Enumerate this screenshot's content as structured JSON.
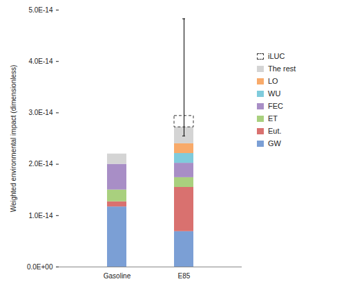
{
  "chart_data": {
    "type": "bar",
    "stacked": true,
    "categories": [
      "Gasoline",
      "E85"
    ],
    "y_label": "Weighted environmental impact (dimensionless)",
    "ylim": [
      0,
      5e-14
    ],
    "yticks": [
      {
        "value": 0,
        "label": "0.0E+00"
      },
      {
        "value": 1e-14,
        "label": "1.0E-14"
      },
      {
        "value": 2e-14,
        "label": "2.0E-14"
      },
      {
        "value": 3e-14,
        "label": "3.0E-14"
      },
      {
        "value": 4e-14,
        "label": "4.0E-14"
      },
      {
        "value": 5e-14,
        "label": "5.0E-14"
      }
    ],
    "grid": false,
    "legend": "right",
    "series": [
      {
        "name": "GW",
        "color": "#7b9fd5",
        "values": [
          1.17e-14,
          6.9e-15
        ]
      },
      {
        "name": "Eut.",
        "color": "#d9716f",
        "values": [
          1e-15,
          8.6e-15
        ]
      },
      {
        "name": "ET",
        "color": "#a9d07e",
        "values": [
          2.3e-15,
          1.9e-15
        ]
      },
      {
        "name": "FEC",
        "color": "#a88ec6",
        "values": [
          5e-15,
          2.8e-15
        ]
      },
      {
        "name": "WU",
        "color": "#7fcbdc",
        "values": [
          null,
          1.9e-15
        ]
      },
      {
        "name": "LO",
        "color": "#f8aa6a",
        "values": [
          null,
          1.9e-15
        ]
      },
      {
        "name": "The rest",
        "color": "#d4d4d4",
        "values": [
          2e-15,
          3.2e-15
        ]
      },
      {
        "name": "iLUC",
        "color": "#333333",
        "line_style": "dashed",
        "values": [
          null,
          2.2e-15
        ]
      }
    ],
    "error_low": [
      null,
      2.55e-14
    ],
    "error_high": [
      null,
      4.83e-14
    ]
  }
}
